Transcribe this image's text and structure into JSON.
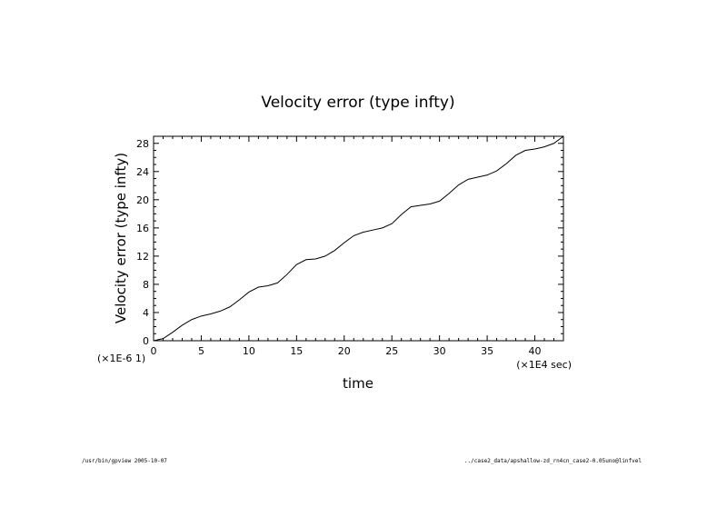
{
  "chart_data": {
    "type": "line",
    "title": "Velocity error (type infty)",
    "xlabel": "time",
    "ylabel": "Velocity error (type infty)",
    "x_scale_label": "(×1E4 sec)",
    "y_scale_label": "(×1E-6 1)",
    "xlim": [
      0,
      43
    ],
    "ylim": [
      0,
      29
    ],
    "x_ticks": [
      0,
      5,
      10,
      15,
      20,
      25,
      30,
      35,
      40
    ],
    "y_ticks": [
      0,
      4,
      8,
      12,
      16,
      20,
      24,
      28
    ],
    "x_tick_labels": [
      "0",
      "5",
      "10",
      "15",
      "20",
      "25",
      "30",
      "35",
      "40"
    ],
    "y_tick_labels": [
      "0",
      "4",
      "8",
      "12",
      "16",
      "20",
      "24",
      "28"
    ],
    "grid": false,
    "series": [
      {
        "x": [
          0,
          1,
          2,
          3,
          4,
          5,
          6,
          7,
          8,
          9,
          10,
          11,
          12,
          13,
          14,
          15,
          16,
          17,
          18,
          19,
          20,
          21,
          22,
          23,
          24,
          25,
          26,
          27,
          28,
          29,
          30,
          31,
          32,
          33,
          34,
          35,
          36,
          37,
          38,
          39,
          40,
          41,
          42,
          43
        ],
        "y": [
          0,
          0.3,
          1.2,
          2.2,
          3.0,
          3.5,
          3.8,
          4.2,
          4.8,
          5.8,
          6.9,
          7.6,
          7.8,
          8.2,
          9.4,
          10.8,
          11.5,
          11.6,
          12.0,
          12.8,
          13.9,
          14.9,
          15.4,
          15.7,
          16.0,
          16.6,
          17.9,
          19.0,
          19.2,
          19.4,
          19.8,
          20.9,
          22.1,
          22.9,
          23.2,
          23.5,
          24.1,
          25.1,
          26.3,
          27.0,
          27.2,
          27.5,
          28.0,
          29.0
        ]
      }
    ]
  },
  "footer": {
    "left": "/usr/bin/gpview  2005-10-07",
    "right": "../case2_data/apshallow-zd_rn4cn_case2-0.05uno@linfvel"
  }
}
